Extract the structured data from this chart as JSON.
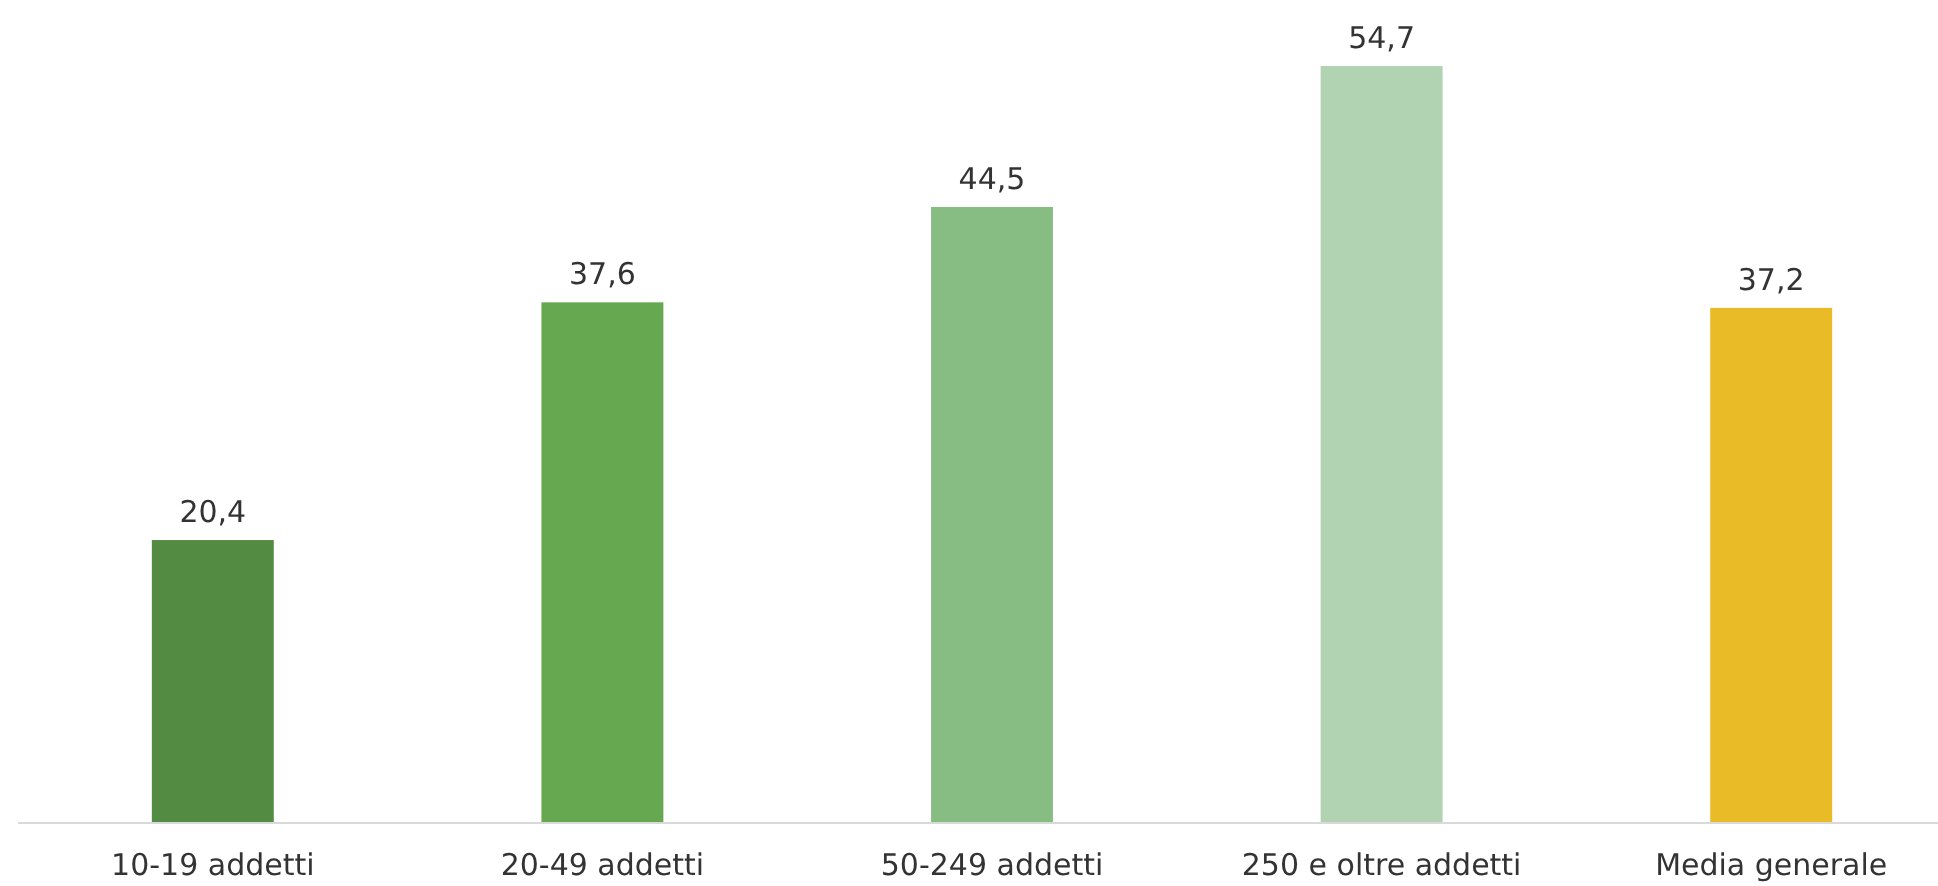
{
  "chart_data": {
    "type": "bar",
    "categories": [
      "10-19 addetti",
      "20-49 addetti",
      "50-249 addetti",
      "250 e oltre addetti",
      "Media generale"
    ],
    "values": [
      20.4,
      37.6,
      44.5,
      54.7,
      37.2
    ],
    "colors": [
      "#538b42",
      "#66a850",
      "#87bd82",
      "#b2d3b2",
      "#e8bb27"
    ],
    "value_labels": [
      "20,4",
      "37,6",
      "44,5",
      "54,7",
      "37,2"
    ]
  }
}
